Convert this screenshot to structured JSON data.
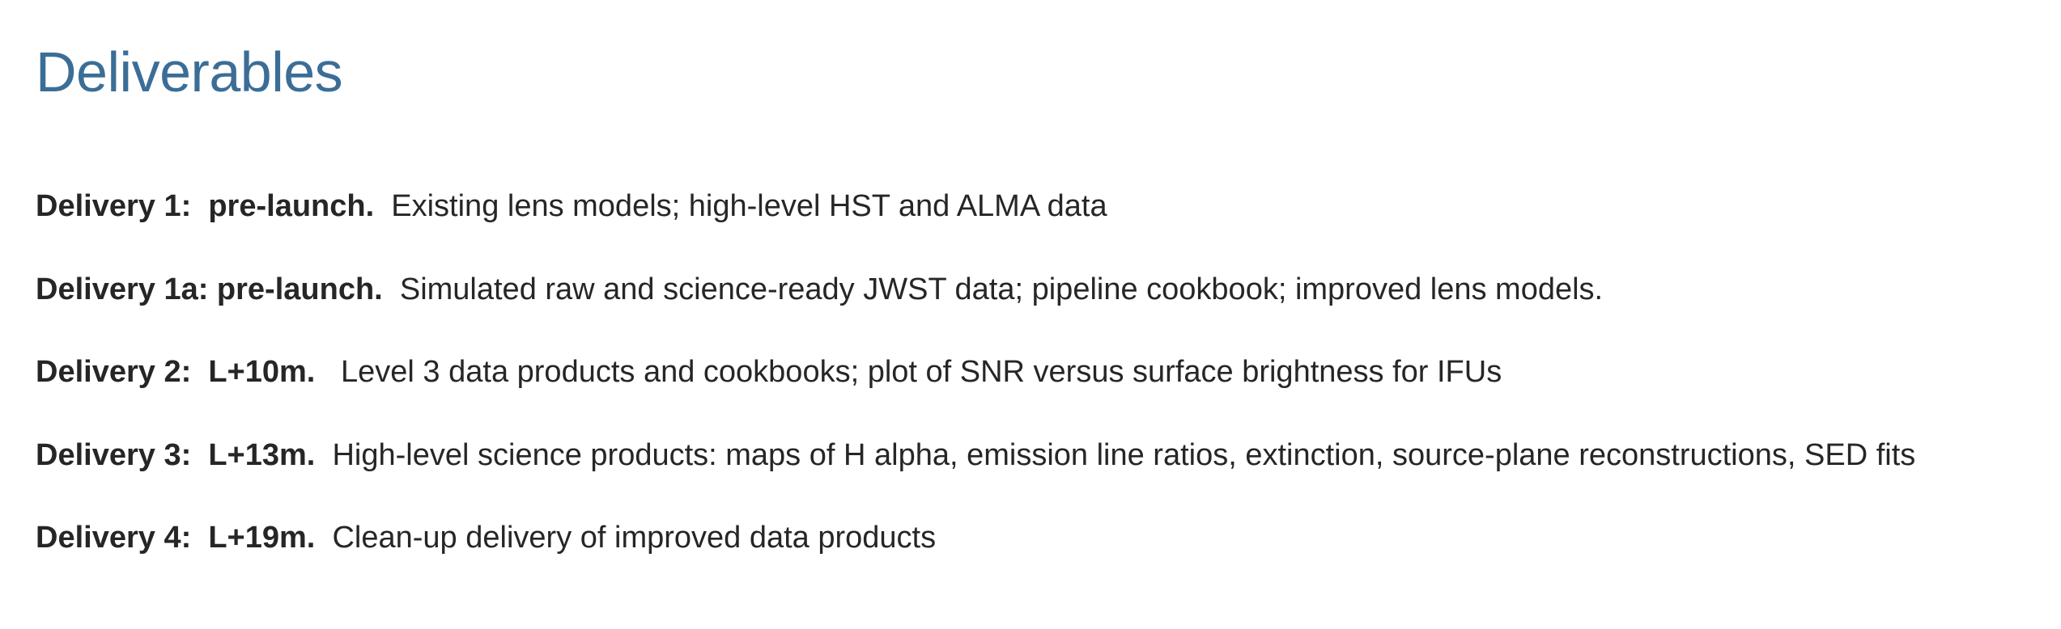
{
  "heading": "Deliverables",
  "deliveries": [
    {
      "label": "Delivery 1:  pre-launch.  ",
      "description": "Existing lens models; high-level HST and ALMA data"
    },
    {
      "label": "Delivery 1a: pre-launch.  ",
      "description": "Simulated raw and science-ready JWST data; pipeline cookbook; improved lens models."
    },
    {
      "label": "Delivery 2:  L+10m.   ",
      "description": "Level 3 data products and cookbooks; plot of SNR versus surface brightness for IFUs"
    },
    {
      "label": "Delivery 3:  L+13m.  ",
      "description": "High-level science products: maps of H alpha, emission line ratios, extinction, source-plane reconstructions, SED fits"
    },
    {
      "label": "Delivery 4:  L+19m.  ",
      "description": "Clean-up delivery of improved data products"
    }
  ]
}
